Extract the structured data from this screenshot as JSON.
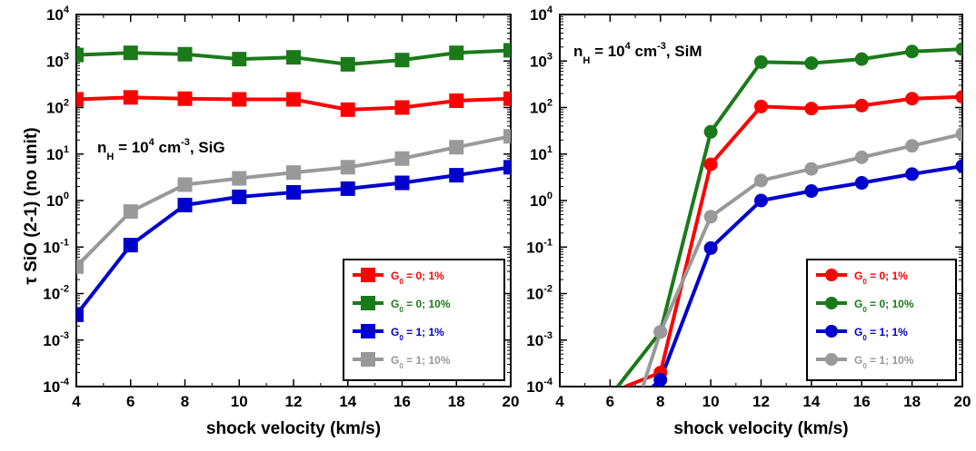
{
  "chart_data": [
    {
      "type": "line",
      "panel": "left",
      "marker": "square",
      "xlabel": "shock velocity (km/s)",
      "ylabel": "τ SiO (2-1) (no unit)",
      "xlim": [
        4,
        20
      ],
      "ylim": [
        0.0001,
        10000
      ],
      "yscale": "log",
      "xticks": [
        4,
        6,
        8,
        10,
        12,
        14,
        16,
        18,
        20
      ],
      "annotation": {
        "n": "n",
        "sub": "H",
        "eq": " = 10",
        "exp": "4",
        "unit": " cm",
        "unit_exp": "-3",
        "tail": ", SiG"
      },
      "legend_position": "lower-right",
      "series": [
        {
          "g": "G",
          "g_sub": "0",
          "label": " = 0; 1%",
          "color": "#ff0000",
          "x": [
            4,
            6,
            8,
            10,
            12,
            14,
            16,
            18,
            20
          ],
          "y": [
            150,
            165,
            155,
            150,
            150,
            90,
            100,
            140,
            155
          ]
        },
        {
          "g": "G",
          "g_sub": "0",
          "label": " = 0; 10%",
          "color": "#1a7a1a",
          "x": [
            4,
            6,
            8,
            10,
            12,
            14,
            16,
            18,
            20
          ],
          "y": [
            1350,
            1500,
            1400,
            1100,
            1200,
            850,
            1050,
            1500,
            1700
          ]
        },
        {
          "g": "G",
          "g_sub": "0",
          "label": " = 1; 1%",
          "color": "#0000cc",
          "x": [
            4,
            6,
            8,
            10,
            12,
            14,
            16,
            18,
            20
          ],
          "y": [
            0.0035,
            0.11,
            0.8,
            1.2,
            1.5,
            1.8,
            2.4,
            3.5,
            5.2
          ]
        },
        {
          "g": "G",
          "g_sub": "0",
          "label": " = 1; 10%",
          "color": "#999999",
          "x": [
            4,
            6,
            8,
            10,
            12,
            14,
            16,
            18,
            20
          ],
          "y": [
            0.038,
            0.58,
            2.2,
            3.0,
            4.0,
            5.2,
            8.0,
            14,
            24
          ]
        }
      ]
    },
    {
      "type": "line",
      "panel": "right",
      "marker": "circle",
      "xlabel": "shock velocity (km/s)",
      "ylabel": "",
      "xlim": [
        4,
        20
      ],
      "ylim": [
        0.0001,
        10000
      ],
      "yscale": "log",
      "xticks": [
        4,
        6,
        8,
        10,
        12,
        14,
        16,
        18,
        20
      ],
      "annotation": {
        "n": "n",
        "sub": "H",
        "eq": " = 10",
        "exp": "4",
        "unit": " cm",
        "unit_exp": "-3",
        "tail": ", SiM"
      },
      "legend_position": "lower-right",
      "series": [
        {
          "g": "G",
          "g_sub": "0",
          "label": " = 0; 1%",
          "color": "#ff0000",
          "x": [
            6.6,
            8,
            10,
            12,
            14,
            16,
            18,
            20
          ],
          "y": [
            0.0001,
            0.0002,
            6,
            105,
            95,
            110,
            155,
            170
          ]
        },
        {
          "g": "G",
          "g_sub": "0",
          "label": " = 0; 10%",
          "color": "#1a7a1a",
          "x": [
            6.3,
            8,
            10,
            12,
            14,
            16,
            18,
            20
          ],
          "y": [
            0.0001,
            0.0015,
            30,
            950,
            900,
            1100,
            1600,
            1800
          ]
        },
        {
          "g": "G",
          "g_sub": "0",
          "label": " = 1; 1%",
          "color": "#0000cc",
          "x": [
            7.7,
            8,
            10,
            12,
            14,
            16,
            18,
            20
          ],
          "y": [
            0.0001,
            0.00014,
            0.095,
            1.0,
            1.6,
            2.4,
            3.7,
            5.5
          ]
        },
        {
          "g": "G",
          "g_sub": "0",
          "label": " = 1; 10%",
          "color": "#999999",
          "x": [
            7.3,
            8,
            10,
            12,
            14,
            16,
            18,
            20
          ],
          "y": [
            0.0001,
            0.0015,
            0.45,
            2.7,
            4.8,
            8.5,
            15,
            27
          ]
        }
      ]
    }
  ]
}
